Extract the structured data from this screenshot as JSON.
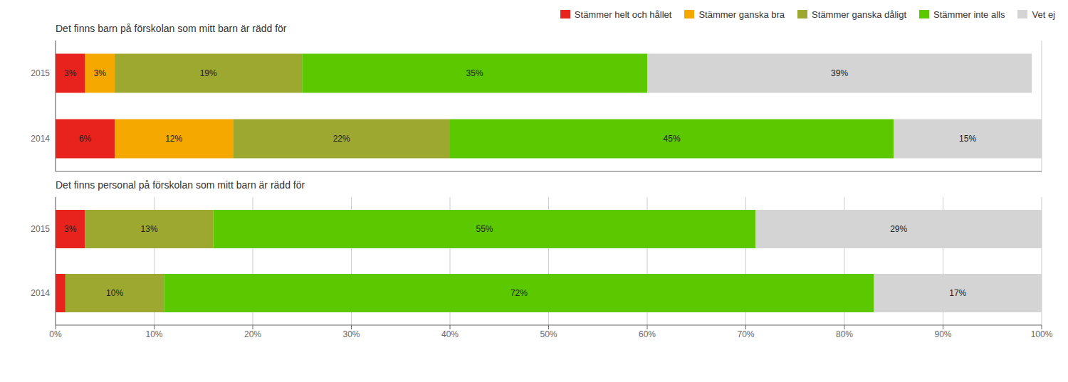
{
  "chart_data": [
    {
      "type": "bar",
      "orientation": "horizontal",
      "stacked": true,
      "data_labels": true,
      "grid": true,
      "legend": "upper right",
      "tick_labels": "y",
      "title": "Det finns barn på förskolan som mitt barn är rädd för",
      "categories": [
        "2014",
        "2015"
      ],
      "xlim": [
        0,
        100
      ],
      "xticks": [
        0,
        10,
        20,
        30,
        40,
        50,
        60,
        70,
        80,
        90,
        100
      ],
      "series": [
        {
          "name": "Stämmer helt och hållet",
          "color": "#e8231e",
          "values": [
            6,
            3
          ],
          "value_labels": [
            "6%",
            "3%"
          ]
        },
        {
          "name": "Stämmer ganska bra",
          "color": "#f5a800",
          "values": [
            12,
            3
          ],
          "value_labels": [
            "12%",
            "3%"
          ]
        },
        {
          "name": "Stämmer ganska dåligt",
          "color": "#9da830",
          "values": [
            22,
            19
          ],
          "value_labels": [
            "22%",
            "19%"
          ]
        },
        {
          "name": "Stämmer inte alls",
          "color": "#5cc800",
          "values": [
            45,
            35
          ],
          "value_labels": [
            "45%",
            "35%"
          ]
        },
        {
          "name": "Vet ej",
          "color": "#d4d4d4",
          "values": [
            15,
            39
          ],
          "value_labels": [
            "15%",
            "39%"
          ]
        }
      ]
    },
    {
      "type": "bar",
      "orientation": "horizontal",
      "stacked": true,
      "data_labels": true,
      "grid": true,
      "title": "Det finns personal på förskolan som mitt barn är rädd för",
      "categories": [
        "2014",
        "2015"
      ],
      "xlim": [
        0,
        100
      ],
      "xticks": [
        {
          "value": 0,
          "label": "0%"
        },
        {
          "value": 10,
          "label": "10%"
        },
        {
          "value": 20,
          "label": "20%"
        },
        {
          "value": 30,
          "label": "30%"
        },
        {
          "value": 40,
          "label": "40%"
        },
        {
          "value": 50,
          "label": "50%"
        },
        {
          "value": 60,
          "label": "60%"
        },
        {
          "value": 70,
          "label": "70%"
        },
        {
          "value": 80,
          "label": "80%"
        },
        {
          "value": 90,
          "label": "90%"
        },
        {
          "value": 100,
          "label": "100%"
        }
      ],
      "series": [
        {
          "name": "Stämmer helt och hållet",
          "color": "#e8231e",
          "values": [
            1,
            3
          ],
          "value_labels": [
            null,
            "3%"
          ]
        },
        {
          "name": "Stämmer ganska bra",
          "color": "#f5a800",
          "values": [
            0,
            0
          ],
          "value_labels": [
            null,
            null
          ]
        },
        {
          "name": "Stämmer ganska dåligt",
          "color": "#9da830",
          "values": [
            10,
            13
          ],
          "value_labels": [
            "10%",
            "13%"
          ]
        },
        {
          "name": "Stämmer inte alls",
          "color": "#5cc800",
          "values": [
            72,
            55
          ],
          "value_labels": [
            "72%",
            "55%"
          ]
        },
        {
          "name": "Vet ej",
          "color": "#d4d4d4",
          "values": [
            17,
            29
          ],
          "value_labels": [
            "17%",
            "29%"
          ]
        }
      ]
    }
  ]
}
